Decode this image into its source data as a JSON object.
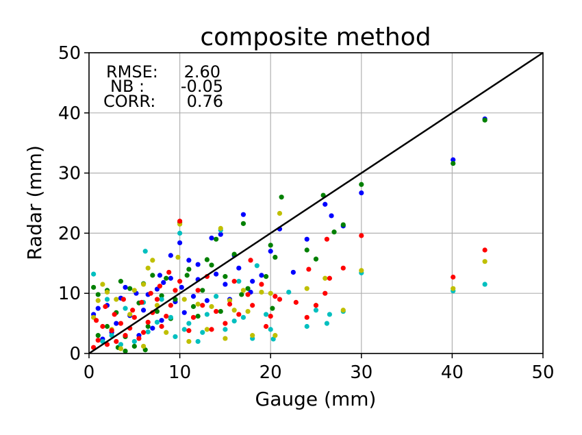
{
  "chart_data": {
    "type": "scatter",
    "title": "composite method",
    "xlabel": "Gauge (mm)",
    "ylabel": "Radar (mm)",
    "xlim": [
      0,
      50
    ],
    "ylim": [
      0,
      50
    ],
    "xticks": [
      "0",
      "10",
      "20",
      "30",
      "40",
      "50"
    ],
    "yticks": [
      "0",
      "10",
      "20",
      "30",
      "40",
      "50"
    ],
    "grid": true,
    "annotations": [
      {
        "label": "RMSE:",
        "value": "2.60"
      },
      {
        "label": "NB :",
        "value": "-0.05"
      },
      {
        "label": "CORR:",
        "value": "0.76"
      }
    ],
    "reference_line": {
      "x": [
        0,
        50
      ],
      "y": [
        0,
        50
      ],
      "color": "#000000"
    },
    "series": [
      {
        "color": "#0000ff",
        "points": [
          [
            43.6,
            39.0
          ],
          [
            40.1,
            32.2
          ],
          [
            30.0,
            26.7
          ],
          [
            26.0,
            24.8
          ],
          [
            26.7,
            22.9
          ],
          [
            28.0,
            21.2
          ],
          [
            24.0,
            19.0
          ],
          [
            21.0,
            20.7
          ],
          [
            17.0,
            23.1
          ],
          [
            20.0,
            17.0
          ],
          [
            13.5,
            19.2
          ],
          [
            10.0,
            18.4
          ],
          [
            14.5,
            19.8
          ],
          [
            16.0,
            16.3
          ],
          [
            11.0,
            15.5
          ],
          [
            19.0,
            13.0
          ],
          [
            12.0,
            12.3
          ],
          [
            15.0,
            11.5
          ],
          [
            17.8,
            10.2
          ],
          [
            9.0,
            12.5
          ],
          [
            8.2,
            11.8
          ],
          [
            7.5,
            10.7
          ],
          [
            6.5,
            9.8
          ],
          [
            5.2,
            10.0
          ],
          [
            4.0,
            11.0
          ],
          [
            3.5,
            9.2
          ],
          [
            2.0,
            8.0
          ],
          [
            1.0,
            7.5
          ],
          [
            0.5,
            6.5
          ],
          [
            9.5,
            8.6
          ],
          [
            11.5,
            9.5
          ],
          [
            13.0,
            8.8
          ],
          [
            12.0,
            14.8
          ],
          [
            6.0,
            7.2
          ],
          [
            4.5,
            6.3
          ],
          [
            3.0,
            5.0
          ],
          [
            2.5,
            3.5
          ],
          [
            1.5,
            2.4
          ],
          [
            8.0,
            5.5
          ],
          [
            7.0,
            4.2
          ],
          [
            5.5,
            3.0
          ],
          [
            10.5,
            6.8
          ],
          [
            15.5,
            9.0
          ],
          [
            18.0,
            12.0
          ],
          [
            22.5,
            13.5
          ],
          [
            9.0,
            16.3
          ],
          [
            16.5,
            14.2
          ],
          [
            14.0,
            13.2
          ],
          [
            10.2,
            11.0
          ],
          [
            7.8,
            13.0
          ]
        ]
      },
      {
        "color": "#008000",
        "points": [
          [
            43.6,
            38.8
          ],
          [
            40.1,
            31.6
          ],
          [
            30.0,
            28.1
          ],
          [
            25.8,
            26.3
          ],
          [
            27.0,
            20.2
          ],
          [
            28.0,
            21.4
          ],
          [
            25.0,
            15.7
          ],
          [
            21.2,
            26.0
          ],
          [
            17.0,
            21.6
          ],
          [
            20.0,
            18.0
          ],
          [
            20.5,
            16.0
          ],
          [
            14.0,
            19.0
          ],
          [
            10.0,
            21.8
          ],
          [
            19.5,
            12.8
          ],
          [
            24.0,
            17.2
          ],
          [
            16.0,
            16.5
          ],
          [
            13.5,
            14.7
          ],
          [
            11.0,
            14.0
          ],
          [
            8.5,
            12.5
          ],
          [
            7.0,
            13.0
          ],
          [
            6.0,
            11.6
          ],
          [
            4.5,
            10.8
          ],
          [
            3.5,
            12.0
          ],
          [
            2.0,
            10.5
          ],
          [
            1.0,
            9.8
          ],
          [
            0.5,
            11.0
          ],
          [
            9.5,
            9.0
          ],
          [
            12.5,
            10.5
          ],
          [
            15.0,
            12.8
          ],
          [
            17.5,
            10.8
          ],
          [
            5.5,
            8.4
          ],
          [
            3.0,
            6.8
          ],
          [
            2.0,
            4.5
          ],
          [
            1.0,
            3.0
          ],
          [
            7.5,
            7.0
          ],
          [
            9.0,
            5.8
          ],
          [
            6.5,
            4.5
          ],
          [
            4.0,
            2.8
          ],
          [
            11.5,
            7.8
          ],
          [
            14.5,
            7.0
          ],
          [
            20.2,
            7.5
          ],
          [
            8.0,
            9.6
          ],
          [
            10.8,
            13.0
          ],
          [
            13.0,
            15.6
          ],
          [
            16.8,
            9.8
          ],
          [
            12.0,
            6.2
          ],
          [
            5.0,
            1.2
          ],
          [
            6.2,
            0.6
          ],
          [
            4.0,
            0.4
          ],
          [
            3.2,
            1.0
          ]
        ]
      },
      {
        "color": "#00bfbf",
        "points": [
          [
            43.6,
            11.5
          ],
          [
            40.1,
            10.4
          ],
          [
            30.0,
            13.4
          ],
          [
            25.0,
            7.2
          ],
          [
            26.5,
            6.5
          ],
          [
            26.2,
            5.0
          ],
          [
            28.0,
            7.0
          ],
          [
            24.0,
            4.5
          ],
          [
            20.0,
            4.0
          ],
          [
            20.3,
            2.4
          ],
          [
            18.0,
            2.5
          ],
          [
            17.0,
            6.0
          ],
          [
            16.0,
            5.4
          ],
          [
            15.0,
            4.0
          ],
          [
            14.5,
            20.5
          ],
          [
            10.0,
            20.0
          ],
          [
            6.2,
            17.0
          ],
          [
            12.5,
            3.5
          ],
          [
            11.0,
            5.0
          ],
          [
            9.0,
            6.0
          ],
          [
            7.5,
            5.2
          ],
          [
            6.5,
            3.6
          ],
          [
            5.0,
            2.0
          ],
          [
            3.5,
            1.5
          ],
          [
            2.5,
            3.0
          ],
          [
            1.5,
            2.0
          ],
          [
            0.5,
            13.2
          ],
          [
            2.0,
            9.0
          ],
          [
            4.0,
            7.5
          ],
          [
            6.0,
            8.5
          ],
          [
            8.0,
            9.0
          ],
          [
            10.5,
            4.0
          ],
          [
            13.0,
            6.5
          ],
          [
            14.0,
            9.5
          ],
          [
            16.5,
            12.0
          ],
          [
            18.5,
            14.6
          ],
          [
            19.5,
            6.5
          ],
          [
            22.0,
            10.2
          ],
          [
            12.0,
            2.0
          ],
          [
            9.5,
            2.8
          ]
        ]
      },
      {
        "color": "#bfbf00",
        "points": [
          [
            43.6,
            15.3
          ],
          [
            40.1,
            10.8
          ],
          [
            30.0,
            13.8
          ],
          [
            25.0,
            8.0
          ],
          [
            26.0,
            12.5
          ],
          [
            28.0,
            7.2
          ],
          [
            24.0,
            10.8
          ],
          [
            21.0,
            23.3
          ],
          [
            20.0,
            10.0
          ],
          [
            20.5,
            3.0
          ],
          [
            18.0,
            3.0
          ],
          [
            17.5,
            7.0
          ],
          [
            16.0,
            7.2
          ],
          [
            15.0,
            2.5
          ],
          [
            14.5,
            20.8
          ],
          [
            10.0,
            21.5
          ],
          [
            9.8,
            16.0
          ],
          [
            7.0,
            15.5
          ],
          [
            6.5,
            14.2
          ],
          [
            6.0,
            11.5
          ],
          [
            5.0,
            10.5
          ],
          [
            3.0,
            9.0
          ],
          [
            2.0,
            10.2
          ],
          [
            1.5,
            11.5
          ],
          [
            1.0,
            8.8
          ],
          [
            0.5,
            6.0
          ],
          [
            4.5,
            6.5
          ],
          [
            7.5,
            8.0
          ],
          [
            10.5,
            9.0
          ],
          [
            12.0,
            8.2
          ],
          [
            13.5,
            7.8
          ],
          [
            15.5,
            8.8
          ],
          [
            17.0,
            10.5
          ],
          [
            19.0,
            10.2
          ],
          [
            8.5,
            3.5
          ],
          [
            11.0,
            2.0
          ],
          [
            13.0,
            4.0
          ],
          [
            6.0,
            1.2
          ],
          [
            3.5,
            0.8
          ],
          [
            2.5,
            4.0
          ]
        ]
      },
      {
        "color": "#ff0000",
        "points": [
          [
            43.6,
            17.2
          ],
          [
            40.1,
            12.7
          ],
          [
            30.0,
            19.6
          ],
          [
            28.0,
            14.2
          ],
          [
            26.0,
            10.0
          ],
          [
            26.5,
            12.5
          ],
          [
            25.0,
            8.0
          ],
          [
            24.0,
            6.0
          ],
          [
            21.0,
            9.0
          ],
          [
            20.5,
            9.5
          ],
          [
            20.0,
            6.2
          ],
          [
            19.5,
            4.5
          ],
          [
            18.0,
            8.0
          ],
          [
            17.5,
            9.8
          ],
          [
            16.5,
            6.5
          ],
          [
            15.5,
            8.2
          ],
          [
            15.0,
            5.0
          ],
          [
            14.0,
            7.0
          ],
          [
            13.5,
            4.0
          ],
          [
            12.5,
            8.0
          ],
          [
            11.5,
            6.0
          ],
          [
            11.0,
            3.8
          ],
          [
            10.0,
            22.0
          ],
          [
            10.0,
            12.0
          ],
          [
            9.5,
            10.5
          ],
          [
            9.0,
            8.0
          ],
          [
            8.5,
            6.2
          ],
          [
            8.0,
            4.5
          ],
          [
            7.5,
            9.0
          ],
          [
            7.0,
            6.8
          ],
          [
            6.5,
            5.2
          ],
          [
            6.0,
            3.5
          ],
          [
            5.5,
            2.5
          ],
          [
            5.0,
            6.0
          ],
          [
            4.5,
            4.2
          ],
          [
            4.0,
            3.0
          ],
          [
            3.5,
            5.0
          ],
          [
            3.0,
            2.0
          ],
          [
            2.5,
            3.8
          ],
          [
            2.0,
            1.5
          ],
          [
            1.5,
            4.5
          ],
          [
            1.0,
            2.2
          ],
          [
            0.5,
            1.0
          ],
          [
            12.0,
            10.5
          ],
          [
            13.0,
            12.8
          ],
          [
            8.8,
            13.5
          ],
          [
            7.8,
            11.2
          ],
          [
            6.8,
            10.0
          ],
          [
            5.8,
            8.5
          ],
          [
            4.8,
            7.2
          ],
          [
            3.8,
            9.0
          ],
          [
            2.8,
            6.5
          ],
          [
            1.8,
            7.8
          ],
          [
            0.8,
            5.5
          ],
          [
            16.0,
            12.0
          ],
          [
            17.8,
            15.5
          ],
          [
            22.8,
            8.5
          ],
          [
            24.2,
            14.0
          ],
          [
            26.2,
            19.0
          ],
          [
            19.0,
            11.5
          ]
        ]
      }
    ]
  }
}
